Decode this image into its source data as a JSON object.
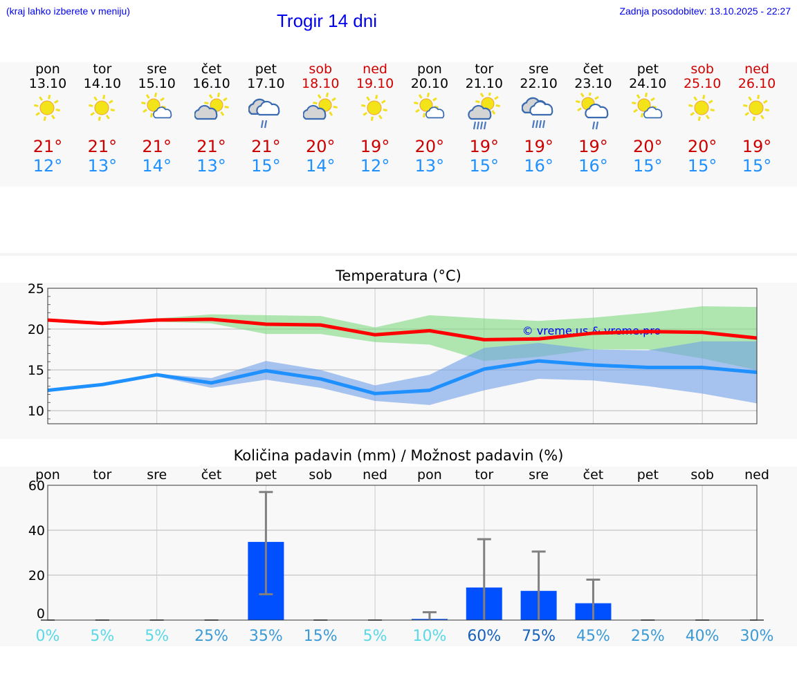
{
  "header": {
    "hint": "(kraj lahko izberete v meniju)",
    "title": "Trogir 14 dni",
    "updated": "Zadnja posodobitev: 13.10.2025 - 22:27"
  },
  "days": [
    {
      "name": "pon",
      "date": "13.10",
      "icon": "sun",
      "max": "21°",
      "min": "12°",
      "weekend": false,
      "precip_pct": "0%"
    },
    {
      "name": "tor",
      "date": "14.10",
      "icon": "sun",
      "max": "21°",
      "min": "13°",
      "weekend": false,
      "precip_pct": "5%"
    },
    {
      "name": "sre",
      "date": "15.10",
      "icon": "sun-small-cloud",
      "max": "21°",
      "min": "14°",
      "weekend": false,
      "precip_pct": "5%"
    },
    {
      "name": "čet",
      "date": "16.10",
      "icon": "cloud-sun",
      "max": "21°",
      "min": "13°",
      "weekend": false,
      "precip_pct": "25%"
    },
    {
      "name": "pet",
      "date": "17.10",
      "icon": "clouds-rain",
      "max": "21°",
      "min": "15°",
      "weekend": false,
      "precip_pct": "35%"
    },
    {
      "name": "sob",
      "date": "18.10",
      "icon": "cloud-sun",
      "max": "20°",
      "min": "14°",
      "weekend": true,
      "precip_pct": "15%"
    },
    {
      "name": "ned",
      "date": "19.10",
      "icon": "sun",
      "max": "19°",
      "min": "12°",
      "weekend": true,
      "precip_pct": "5%"
    },
    {
      "name": "pon",
      "date": "20.10",
      "icon": "sun-small-cloud",
      "max": "20°",
      "min": "13°",
      "weekend": false,
      "precip_pct": "10%"
    },
    {
      "name": "tor",
      "date": "21.10",
      "icon": "cloud-sun-rain",
      "max": "19°",
      "min": "15°",
      "weekend": false,
      "precip_pct": "60%"
    },
    {
      "name": "sre",
      "date": "22.10",
      "icon": "clouds-heavy-rain",
      "max": "19°",
      "min": "16°",
      "weekend": false,
      "precip_pct": "75%"
    },
    {
      "name": "čet",
      "date": "23.10",
      "icon": "sun-cloud-rain",
      "max": "19°",
      "min": "16°",
      "weekend": false,
      "precip_pct": "45%"
    },
    {
      "name": "pet",
      "date": "24.10",
      "icon": "sun-small-cloud",
      "max": "20°",
      "min": "15°",
      "weekend": false,
      "precip_pct": "25%"
    },
    {
      "name": "sob",
      "date": "25.10",
      "icon": "sun",
      "max": "20°",
      "min": "15°",
      "weekend": true,
      "precip_pct": "40%"
    },
    {
      "name": "ned",
      "date": "26.10",
      "icon": "sun",
      "max": "19°",
      "min": "15°",
      "weekend": true,
      "precip_pct": "30%"
    }
  ],
  "colors": {
    "max": "#cc0000",
    "min": "#1e90ff",
    "weekend": "#d00000",
    "bar": "#0050ff",
    "pct_low": "#5ad8e6",
    "pct_mid": "#3a9ad6",
    "pct_high": "#1560bd"
  },
  "chart_data": [
    {
      "type": "line",
      "title": "Temperatura (°C)",
      "watermark": "© vreme.us & vreme.pro",
      "ylim": [
        8.4,
        25
      ],
      "yticks": [
        "10",
        "15",
        "20",
        "25"
      ],
      "series": [
        {
          "name": "max",
          "values": [
            21.1,
            20.7,
            21.1,
            21.2,
            20.6,
            20.5,
            19.3,
            19.8,
            18.7,
            18.8,
            19.5,
            19.7,
            19.6,
            18.9
          ],
          "band_high": [
            21.1,
            20.7,
            21.3,
            21.8,
            21.7,
            21.6,
            20.2,
            21.7,
            21.3,
            21.0,
            21.4,
            22.0,
            22.8,
            22.7
          ],
          "band_low": [
            21.1,
            20.7,
            20.9,
            20.7,
            19.4,
            19.4,
            18.4,
            18.1,
            16.1,
            16.6,
            17.5,
            17.5,
            16.4,
            15.0
          ]
        },
        {
          "name": "min",
          "values": [
            12.5,
            13.2,
            14.4,
            13.4,
            14.9,
            13.9,
            12.1,
            12.5,
            15.1,
            16.1,
            15.6,
            15.3,
            15.3,
            14.7
          ],
          "band_high": [
            12.5,
            13.2,
            14.5,
            14.0,
            16.1,
            15.0,
            13.1,
            14.4,
            17.7,
            18.3,
            17.5,
            17.4,
            18.5,
            18.5
          ],
          "band_low": [
            12.5,
            13.2,
            14.2,
            12.8,
            13.8,
            12.8,
            11.2,
            10.7,
            12.5,
            13.9,
            13.7,
            13.0,
            12.1,
            10.9
          ]
        }
      ]
    },
    {
      "type": "bar",
      "title": "Količina padavin (mm) / Možnost padavin (%)",
      "ylim": [
        0,
        60
      ],
      "yticks": [
        "0",
        "20",
        "40",
        "60"
      ],
      "values": [
        0,
        0,
        0,
        0,
        34.8,
        0,
        0,
        0.5,
        14.5,
        13,
        7.5,
        0,
        0,
        0
      ],
      "err_low": [
        0,
        0,
        0,
        0,
        11.5,
        0,
        0,
        0,
        0,
        0,
        0,
        0,
        0,
        0
      ],
      "err_high": [
        0,
        0,
        0,
        0,
        57,
        0,
        0,
        3.5,
        36,
        30.5,
        18,
        0,
        0,
        0
      ],
      "percent": [
        0,
        5,
        5,
        25,
        35,
        15,
        5,
        10,
        60,
        75,
        45,
        25,
        40,
        30
      ]
    }
  ]
}
